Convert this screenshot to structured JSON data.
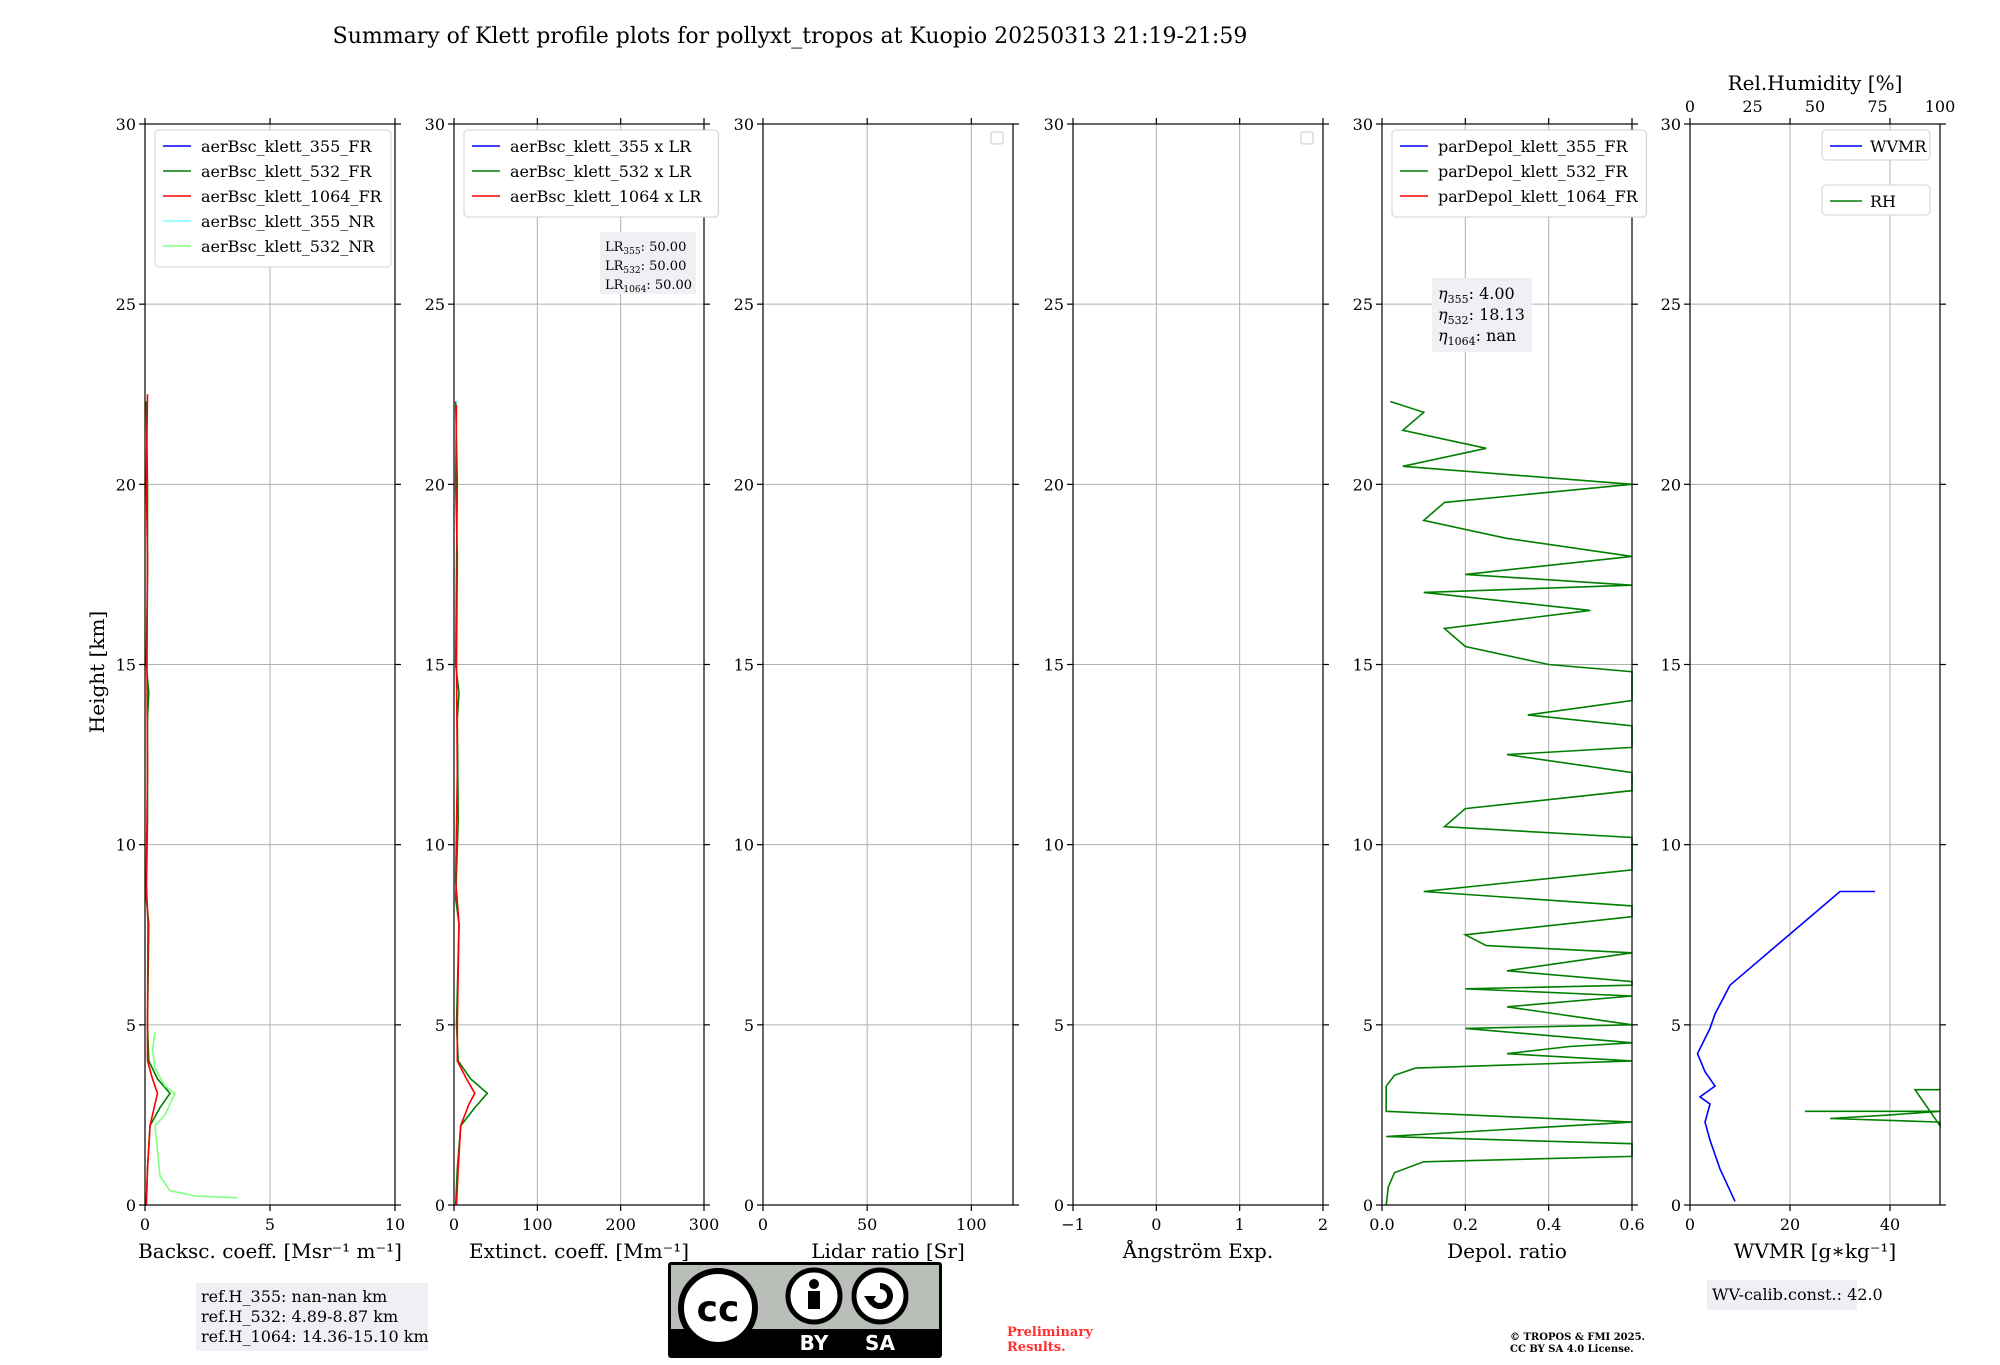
{
  "title": "Summary of Klett profile plots for pollyxt_tropos at Kuopio 20250313 21:19-21:59",
  "shared_ylabel": "Height [km]",
  "colors": {
    "c355": "#0000ff",
    "c532": "#007f00",
    "c1064": "#ff0000",
    "c355nr": "#7fffff",
    "c532nr": "#7fff7f",
    "grid": "#b0b0b0",
    "preliminary": "#ff3030"
  },
  "chart_data": [
    {
      "type": "line",
      "xlabel": "Backsc. coeff. [Msr⁻¹ m⁻¹]",
      "ylabel": "Height [km]",
      "xlim": [
        0,
        10
      ],
      "ylim": [
        0,
        30
      ],
      "xticks": [
        "0",
        "5",
        "10"
      ],
      "xtick_values": [
        0,
        5,
        10
      ],
      "yticks": [
        "0",
        "5",
        "10",
        "15",
        "20",
        "25",
        "30"
      ],
      "legend": "top-left",
      "series": [
        {
          "name": "aerBsc_klett_355_FR",
          "color": "#0000ff",
          "points": []
        },
        {
          "name": "aerBsc_klett_532_FR",
          "color": "#007f00",
          "points": [
            [
              0.05,
              0
            ],
            [
              0.1,
              1
            ],
            [
              0.2,
              2.2
            ],
            [
              0.6,
              2.7
            ],
            [
              1.0,
              3.1
            ],
            [
              0.5,
              3.5
            ],
            [
              0.15,
              4
            ],
            [
              0.1,
              5
            ],
            [
              0.15,
              7.8
            ],
            [
              0.05,
              8.5
            ],
            [
              0.1,
              10.7
            ],
            [
              0.1,
              13.5
            ],
            [
              0.15,
              14.2
            ],
            [
              0.05,
              15
            ],
            [
              0.1,
              17.5
            ],
            [
              0.1,
              20
            ],
            [
              0.05,
              22.3
            ]
          ]
        },
        {
          "name": "aerBsc_klett_1064_FR",
          "color": "#ff0000",
          "points": [
            [
              0.05,
              0
            ],
            [
              0.1,
              1
            ],
            [
              0.2,
              2.2
            ],
            [
              0.4,
              2.8
            ],
            [
              0.5,
              3.1
            ],
            [
              0.3,
              3.5
            ],
            [
              0.1,
              4
            ],
            [
              0.1,
              5
            ],
            [
              0.12,
              7.8
            ],
            [
              0.05,
              9
            ],
            [
              0.1,
              12
            ],
            [
              0.08,
              15
            ],
            [
              0.1,
              18
            ],
            [
              0.05,
              20
            ],
            [
              0.1,
              22.5
            ]
          ]
        },
        {
          "name": "aerBsc_klett_355_NR",
          "color": "#7fffff",
          "points": []
        },
        {
          "name": "aerBsc_klett_532_NR",
          "color": "#7fff7f",
          "points": [
            [
              3.7,
              0.2
            ],
            [
              2.0,
              0.25
            ],
            [
              1.0,
              0.4
            ],
            [
              0.6,
              0.8
            ],
            [
              0.5,
              1.5
            ],
            [
              0.4,
              2.2
            ],
            [
              0.8,
              2.5
            ],
            [
              1.0,
              2.8
            ],
            [
              1.2,
              3.1
            ],
            [
              0.8,
              3.3
            ],
            [
              0.4,
              3.8
            ],
            [
              0.3,
              4.3
            ],
            [
              0.4,
              4.8
            ]
          ]
        }
      ],
      "annotation_lines": [
        "ref.H_355: nan-nan km",
        "ref.H_532: 4.89-8.87 km",
        "ref.H_1064: 14.36-15.10 km"
      ]
    },
    {
      "type": "line",
      "xlabel": "Extinct. coeff. [Mm⁻¹]",
      "xlim": [
        0,
        300
      ],
      "ylim": [
        0,
        30
      ],
      "xticks": [
        "0",
        "100",
        "200",
        "300"
      ],
      "xtick_values": [
        0,
        100,
        200,
        300
      ],
      "yticks": [
        "0",
        "5",
        "10",
        "15",
        "20",
        "25",
        "30"
      ],
      "legend": "top-left",
      "series": [
        {
          "name": "aerBsc_klett_355 x LR",
          "color": "#0000ff",
          "points": []
        },
        {
          "name": "aerBsc_klett_532 x LR",
          "color": "#007f00",
          "points": [
            [
              2,
              0
            ],
            [
              4,
              1
            ],
            [
              8,
              2.2
            ],
            [
              25,
              2.7
            ],
            [
              40,
              3.1
            ],
            [
              20,
              3.5
            ],
            [
              5,
              4
            ],
            [
              3,
              5
            ],
            [
              6,
              7.8
            ],
            [
              2,
              8.5
            ],
            [
              5,
              10.7
            ],
            [
              4,
              13.5
            ],
            [
              6,
              14.2
            ],
            [
              2,
              15
            ],
            [
              3,
              17.5
            ],
            [
              4,
              20
            ],
            [
              2,
              22.3
            ]
          ]
        },
        {
          "name": "aerBsc_klett_1064 x LR",
          "color": "#ff0000",
          "points": [
            [
              3,
              0
            ],
            [
              5,
              1
            ],
            [
              8,
              2.2
            ],
            [
              18,
              2.8
            ],
            [
              25,
              3.1
            ],
            [
              15,
              3.5
            ],
            [
              4,
              4
            ],
            [
              4,
              5
            ],
            [
              6,
              7.8
            ],
            [
              2,
              9
            ],
            [
              4,
              12
            ],
            [
              3,
              15
            ],
            [
              4,
              18
            ],
            [
              2,
              20
            ],
            [
              3,
              22.2
            ]
          ]
        }
      ],
      "lr_labels": [
        {
          "label": "LR",
          "sub": "355",
          "value": ": 50.00"
        },
        {
          "label": "LR",
          "sub": "532",
          "value": ": 50.00"
        },
        {
          "label": "LR",
          "sub": "1064",
          "value": ": 50.00"
        }
      ]
    },
    {
      "type": "line",
      "xlabel": "Lidar ratio [Sr]",
      "xlim": [
        0,
        120
      ],
      "ylim": [
        0,
        30
      ],
      "xticks": [
        "0",
        "50",
        "100"
      ],
      "xtick_values": [
        0,
        50,
        100
      ],
      "yticks": [
        "0",
        "5",
        "10",
        "15",
        "20",
        "25",
        "30"
      ],
      "legend": "top-right",
      "series": []
    },
    {
      "type": "line",
      "xlabel": "Ångström Exp.",
      "xlim": [
        -1,
        2
      ],
      "ylim": [
        0,
        30
      ],
      "xticks": [
        "−1",
        "0",
        "1",
        "2"
      ],
      "xtick_values": [
        -1,
        0,
        1,
        2
      ],
      "yticks": [
        "0",
        "5",
        "10",
        "15",
        "20",
        "25",
        "30"
      ],
      "legend": "top-right",
      "series": []
    },
    {
      "type": "line",
      "xlabel": "Depol. ratio",
      "xlim": [
        0,
        0.6
      ],
      "ylim": [
        0,
        30
      ],
      "xticks": [
        "0.0",
        "0.2",
        "0.4",
        "0.6"
      ],
      "xtick_values": [
        0,
        0.2,
        0.4,
        0.6
      ],
      "yticks": [
        "0",
        "5",
        "10",
        "15",
        "20",
        "25",
        "30"
      ],
      "legend": "top-left",
      "series": [
        {
          "name": "parDepol_klett_355_FR",
          "color": "#0000ff",
          "points": []
        },
        {
          "name": "parDepol_klett_532_FR",
          "color": "#007f00",
          "points": [
            [
              0.01,
              0
            ],
            [
              0.015,
              0.5
            ],
            [
              0.03,
              0.9
            ],
            [
              0.1,
              1.2
            ],
            [
              0.6,
              1.35
            ],
            [
              0.6,
              1.45
            ],
            [
              0.6,
              1.6
            ],
            [
              0.6,
              1.7
            ],
            [
              0.01,
              1.9
            ],
            [
              0.6,
              2.3
            ],
            [
              0.01,
              2.6
            ],
            [
              0.01,
              3.3
            ],
            [
              0.03,
              3.6
            ],
            [
              0.08,
              3.8
            ],
            [
              0.6,
              4.0
            ],
            [
              0.3,
              4.2
            ],
            [
              0.45,
              4.4
            ],
            [
              0.6,
              4.5
            ],
            [
              0.2,
              4.9
            ],
            [
              0.6,
              5.0
            ],
            [
              0.3,
              5.5
            ],
            [
              0.6,
              5.8
            ],
            [
              0.2,
              6.0
            ],
            [
              0.6,
              6.1
            ],
            [
              0.6,
              6.2
            ],
            [
              0.3,
              6.5
            ],
            [
              0.6,
              7.0
            ],
            [
              0.25,
              7.2
            ],
            [
              0.2,
              7.5
            ],
            [
              0.6,
              8.0
            ],
            [
              0.6,
              8.3
            ],
            [
              0.1,
              8.7
            ],
            [
              0.6,
              9.3
            ],
            [
              0.6,
              10.0
            ],
            [
              0.6,
              10.2
            ],
            [
              0.15,
              10.5
            ],
            [
              0.2,
              11.0
            ],
            [
              0.6,
              11.5
            ],
            [
              0.6,
              12.0
            ],
            [
              0.3,
              12.5
            ],
            [
              0.6,
              12.7
            ],
            [
              0.6,
              13.0
            ],
            [
              0.6,
              13.3
            ],
            [
              0.35,
              13.6
            ],
            [
              0.6,
              14.0
            ],
            [
              0.6,
              14.5
            ],
            [
              0.6,
              14.8
            ],
            [
              0.4,
              15.0
            ],
            [
              0.2,
              15.5
            ],
            [
              0.15,
              16.0
            ],
            [
              0.5,
              16.5
            ],
            [
              0.1,
              17.0
            ],
            [
              0.6,
              17.2
            ],
            [
              0.2,
              17.5
            ],
            [
              0.6,
              18.0
            ],
            [
              0.3,
              18.5
            ],
            [
              0.1,
              19.0
            ],
            [
              0.15,
              19.5
            ],
            [
              0.6,
              20.0
            ],
            [
              0.05,
              20.5
            ],
            [
              0.25,
              21.0
            ],
            [
              0.05,
              21.5
            ],
            [
              0.1,
              22.0
            ],
            [
              0.02,
              22.3
            ]
          ]
        },
        {
          "name": "parDepol_klett_1064_FR",
          "color": "#ff0000",
          "points": []
        }
      ],
      "eta_labels": [
        {
          "label": "η",
          "sub": "355",
          "value": ": 4.00"
        },
        {
          "label": "η",
          "sub": "532",
          "value": ": 18.13"
        },
        {
          "label": "η",
          "sub": "1064",
          "value": ": nan"
        }
      ]
    },
    {
      "type": "line",
      "xlabel": "WVMR [g∗kg⁻¹]",
      "xlim": [
        0,
        50
      ],
      "ylim": [
        0,
        30
      ],
      "xticks": [
        "0",
        "20",
        "40"
      ],
      "xtick_values": [
        0,
        20,
        40
      ],
      "yticks": [
        "0",
        "5",
        "10",
        "15",
        "20",
        "25",
        "30"
      ],
      "top_xlabel": "Rel.Humidity [%]",
      "top_xlim": [
        0,
        100
      ],
      "top_xticks": [
        "0",
        "25",
        "50",
        "75",
        "100"
      ],
      "top_xtick_values": [
        0,
        25,
        50,
        75,
        100
      ],
      "legend": "top-right",
      "series": [
        {
          "name": "WVMR",
          "color": "#0000ff",
          "points": [
            [
              9,
              0.1
            ],
            [
              8,
              0.4
            ],
            [
              6,
              1.0
            ],
            [
              4,
              1.8
            ],
            [
              3,
              2.3
            ],
            [
              4,
              2.8
            ],
            [
              2,
              3.0
            ],
            [
              5,
              3.3
            ],
            [
              3,
              3.7
            ],
            [
              1.5,
              4.2
            ],
            [
              4,
              4.9
            ],
            [
              5,
              5.3
            ],
            [
              8,
              6.1
            ],
            [
              30,
              8.7
            ],
            [
              37,
              8.7
            ]
          ]
        },
        {
          "name": "RH",
          "color": "#007f00",
          "points": [
            [
              23,
              2.6
            ],
            [
              50,
              2.6
            ],
            [
              40,
              2.5
            ],
            [
              28,
              2.4
            ],
            [
              50,
              2.3
            ],
            [
              50,
              2.2
            ],
            [
              45,
              3.2
            ],
            [
              50,
              3.2
            ]
          ]
        }
      ],
      "annotation_lines": [
        "WV-calib.const.: 42.0"
      ]
    }
  ],
  "footer": {
    "license_badge_top": "cc",
    "license_by": "BY",
    "license_sa": "SA",
    "preliminary_line1": "Preliminary",
    "preliminary_line2": "Results.",
    "copyright_line1": "© TROPOS & FMI 2025.",
    "copyright_line2": "CC BY SA 4.0 License."
  }
}
